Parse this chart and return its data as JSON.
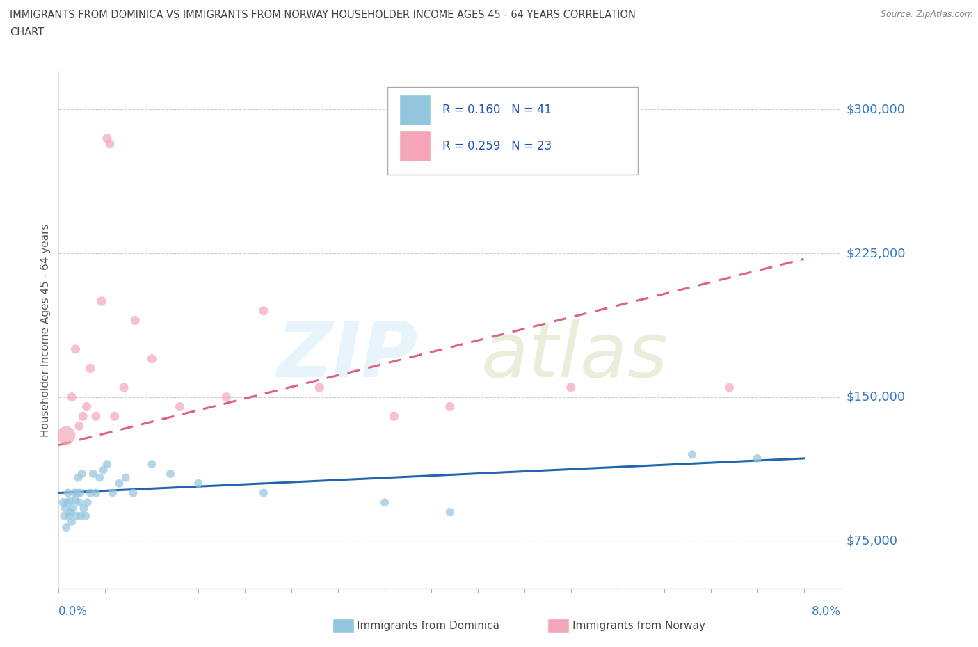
{
  "title_line1": "IMMIGRANTS FROM DOMINICA VS IMMIGRANTS FROM NORWAY HOUSEHOLDER INCOME AGES 45 - 64 YEARS CORRELATION",
  "title_line2": "CHART",
  "source": "Source: ZipAtlas.com",
  "ylabel": "Householder Income Ages 45 - 64 years",
  "xlim": [
    0.0,
    8.4
  ],
  "ylim": [
    50000,
    320000
  ],
  "yticks": [
    75000,
    150000,
    225000,
    300000
  ],
  "ytick_labels": [
    "$75,000",
    "$150,000",
    "$225,000",
    "$300,000"
  ],
  "dominica_R": 0.16,
  "dominica_N": 41,
  "norway_R": 0.259,
  "norway_N": 23,
  "dominica_color": "#92c5de",
  "norway_color": "#f4a6b8",
  "dominica_line_color": "#2166ac",
  "norway_line_color": "#e06080",
  "dominica_x": [
    0.05,
    0.06,
    0.07,
    0.08,
    0.09,
    0.1,
    0.11,
    0.12,
    0.13,
    0.14,
    0.15,
    0.17,
    0.18,
    0.19,
    0.2,
    0.21,
    0.22,
    0.23,
    0.24,
    0.25,
    0.27,
    0.29,
    0.31,
    0.34,
    0.37,
    0.4,
    0.44,
    0.48,
    0.52,
    0.58,
    0.65,
    0.72,
    0.8,
    1.0,
    1.2,
    1.5,
    2.2,
    3.5,
    4.2,
    6.8,
    7.5
  ],
  "dominica_y": [
    95000,
    88000,
    92000,
    82000,
    95000,
    100000,
    88000,
    96000,
    90000,
    85000,
    92000,
    100000,
    96000,
    88000,
    100000,
    108000,
    95000,
    100000,
    88000,
    110000,
    92000,
    88000,
    95000,
    100000,
    110000,
    100000,
    108000,
    112000,
    115000,
    100000,
    105000,
    108000,
    100000,
    115000,
    110000,
    105000,
    100000,
    95000,
    90000,
    120000,
    118000
  ],
  "dominica_sizes": [
    30,
    25,
    25,
    25,
    25,
    25,
    25,
    25,
    25,
    25,
    25,
    25,
    25,
    25,
    25,
    25,
    25,
    25,
    25,
    25,
    25,
    25,
    25,
    25,
    25,
    25,
    25,
    25,
    25,
    25,
    25,
    25,
    25,
    25,
    25,
    25,
    25,
    25,
    25,
    25,
    25
  ],
  "norway_x": [
    0.08,
    0.14,
    0.18,
    0.22,
    0.26,
    0.3,
    0.34,
    0.4,
    0.46,
    0.52,
    0.55,
    0.6,
    0.7,
    0.82,
    1.0,
    1.3,
    1.8,
    2.2,
    2.8,
    3.6,
    4.2,
    5.5,
    7.2
  ],
  "norway_y": [
    130000,
    150000,
    175000,
    135000,
    140000,
    145000,
    165000,
    140000,
    200000,
    285000,
    282000,
    140000,
    155000,
    190000,
    170000,
    145000,
    150000,
    195000,
    155000,
    140000,
    145000,
    155000,
    155000
  ],
  "norway_sizes": [
    120,
    30,
    30,
    30,
    30,
    30,
    30,
    30,
    30,
    30,
    30,
    30,
    30,
    30,
    30,
    30,
    30,
    30,
    30,
    30,
    30,
    30,
    30
  ]
}
